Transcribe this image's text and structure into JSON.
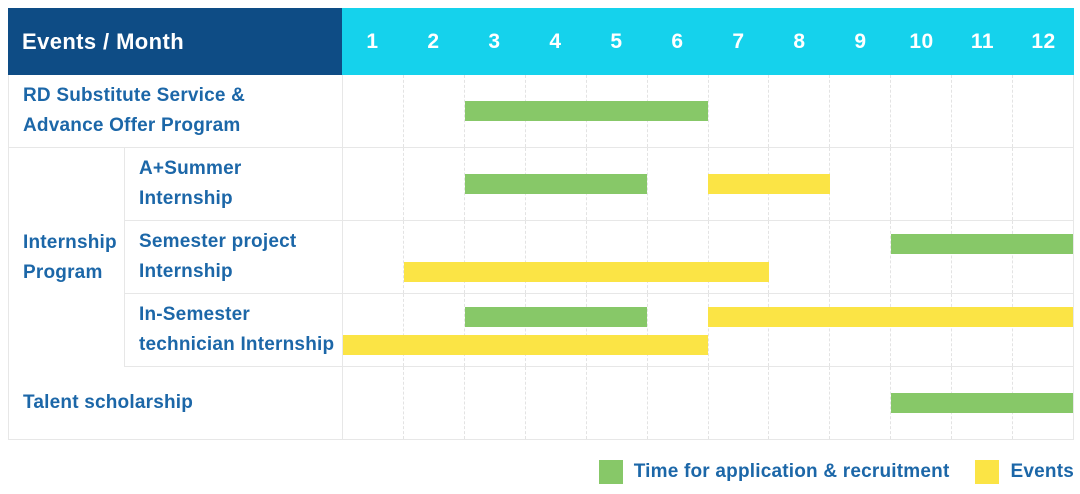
{
  "colors": {
    "header_bg": "#0E4C85",
    "months_bg": "#15D2EC",
    "text_blue": "#1C67A8",
    "green": "#87C868",
    "yellow": "#FBE445",
    "grid": "#E7E7E7"
  },
  "header": {
    "title": "Events / Month",
    "months": [
      "1",
      "2",
      "3",
      "4",
      "5",
      "6",
      "7",
      "8",
      "9",
      "10",
      "11",
      "12"
    ]
  },
  "table": {
    "group_label": "Internship\nProgram",
    "rows": [
      {
        "id": "rd-substitute-service",
        "label": "RD Substitute Service &\nAdvance Offer Program",
        "group": null,
        "bars": [
          {
            "kind": "recruitment",
            "start": 3,
            "end": 6,
            "track": "center"
          }
        ]
      },
      {
        "id": "a-plus-summer-internship",
        "label": "A+Summer\nInternship",
        "group": "Internship Program",
        "bars": [
          {
            "kind": "recruitment",
            "start": 3,
            "end": 5,
            "track": "center"
          },
          {
            "kind": "events",
            "start": 7,
            "end": 8,
            "track": "center"
          }
        ]
      },
      {
        "id": "semester-project-internship",
        "label": "Semester project\nInternship",
        "group": "Internship Program",
        "bars": [
          {
            "kind": "recruitment",
            "start": 10,
            "end": 12,
            "track": "top"
          },
          {
            "kind": "events",
            "start": 2,
            "end": 7,
            "track": "bottom"
          }
        ]
      },
      {
        "id": "in-semester-technician-internship",
        "label": "In-Semester\ntechnician Internship",
        "group": "Internship Program",
        "bars": [
          {
            "kind": "recruitment",
            "start": 3,
            "end": 5,
            "track": "top"
          },
          {
            "kind": "events",
            "start": 7,
            "end": 12,
            "track": "top"
          },
          {
            "kind": "events",
            "start": 1,
            "end": 6,
            "track": "bottom"
          }
        ]
      },
      {
        "id": "talent-scholarship",
        "label": "Talent scholarship",
        "group": null,
        "bars": [
          {
            "kind": "recruitment",
            "start": 10,
            "end": 12,
            "track": "center"
          }
        ]
      }
    ]
  },
  "legend": {
    "items": [
      {
        "kind": "recruitment",
        "label": "Time for application & recruitment"
      },
      {
        "kind": "events",
        "label": "Events"
      }
    ]
  },
  "chart_data": {
    "type": "bar",
    "subtype": "gantt",
    "title": "Events / Month",
    "x_unit": "month",
    "x_ticks": [
      1,
      2,
      3,
      4,
      5,
      6,
      7,
      8,
      9,
      10,
      11,
      12
    ],
    "x_range": [
      1,
      12
    ],
    "legend": [
      "Time for application & recruitment",
      "Events"
    ],
    "legend_position": "bottom-right",
    "grid": true,
    "tasks": [
      {
        "name": "RD Substitute Service & Advance Offer Program",
        "group": null,
        "segments": [
          {
            "series": "Time for application & recruitment",
            "start_month": 3,
            "end_month": 6
          }
        ]
      },
      {
        "name": "A+Summer Internship",
        "group": "Internship Program",
        "segments": [
          {
            "series": "Time for application & recruitment",
            "start_month": 3,
            "end_month": 5
          },
          {
            "series": "Events",
            "start_month": 7,
            "end_month": 8
          }
        ]
      },
      {
        "name": "Semester project Internship",
        "group": "Internship Program",
        "segments": [
          {
            "series": "Time for application & recruitment",
            "start_month": 10,
            "end_month": 12
          },
          {
            "series": "Events",
            "start_month": 2,
            "end_month": 7
          }
        ]
      },
      {
        "name": "In-Semester technician Internship",
        "group": "Internship Program",
        "segments": [
          {
            "series": "Time for application & recruitment",
            "start_month": 3,
            "end_month": 5
          },
          {
            "series": "Events",
            "start_month": 7,
            "end_month": 12
          },
          {
            "series": "Events",
            "start_month": 1,
            "end_month": 6
          }
        ]
      },
      {
        "name": "Talent scholarship",
        "group": null,
        "segments": [
          {
            "series": "Time for application & recruitment",
            "start_month": 10,
            "end_month": 12
          }
        ]
      }
    ]
  }
}
